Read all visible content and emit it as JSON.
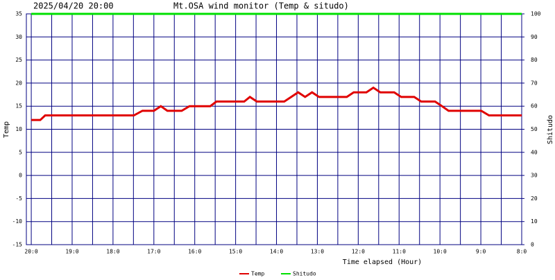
{
  "chart_data": {
    "type": "line",
    "timestamp": "2025/04/20 20:00",
    "title": "Mt.OSA wind monitor (Temp & situdo)",
    "x_label": "Time elapsed (Hour)",
    "y_label": "Temp",
    "y2_label": "Shitudo",
    "xlim": [
      20.12,
      8
    ],
    "xticks": [
      {
        "value": 20,
        "label": "20:0"
      },
      {
        "value": 19,
        "label": "19:0"
      },
      {
        "value": 18,
        "label": "18:0"
      },
      {
        "value": 17,
        "label": "17:0"
      },
      {
        "value": 16,
        "label": "16:0"
      },
      {
        "value": 15,
        "label": "15:0"
      },
      {
        "value": 14,
        "label": "14:0"
      },
      {
        "value": 13,
        "label": "13:0"
      },
      {
        "value": 12,
        "label": "12:0"
      },
      {
        "value": 11,
        "label": "11:0"
      },
      {
        "value": 10,
        "label": "10:0"
      },
      {
        "value": 9,
        "label": "9:0"
      },
      {
        "value": 8,
        "label": "8:0"
      }
    ],
    "ylim": [
      -15,
      35
    ],
    "yticks": [
      -15,
      -10,
      -5,
      0,
      5,
      10,
      15,
      20,
      25,
      30,
      35
    ],
    "y2lim": [
      0,
      100
    ],
    "y2ticks": [
      0,
      10,
      20,
      30,
      40,
      50,
      60,
      70,
      80,
      90,
      100
    ],
    "grid": true,
    "series": [
      {
        "name": "Temp",
        "color": "#e00000",
        "x": [
          20,
          19.78,
          19.66,
          17.49,
          17.28,
          17.0,
          16.83,
          16.67,
          16.32,
          16.13,
          15.62,
          15.47,
          14.79,
          14.65,
          14.48,
          13.81,
          13.64,
          13.47,
          13.3,
          13.13,
          12.96,
          12.28,
          12.11,
          11.8,
          11.63,
          11.46,
          11.12,
          10.95,
          10.63,
          10.46,
          10.12,
          9.95,
          9.79,
          8.99,
          8.8,
          8
        ],
        "values": [
          12,
          12,
          13,
          13,
          14,
          14,
          15,
          14,
          14,
          15,
          15,
          16,
          16,
          17,
          16,
          16,
          17,
          18,
          17,
          18,
          17,
          17,
          18,
          18,
          19,
          18,
          18,
          17,
          17,
          16,
          16,
          15,
          14,
          14,
          13,
          13
        ]
      },
      {
        "name": "Shitudo",
        "color": "#00e000",
        "axis": "y2",
        "x": [
          20,
          8
        ],
        "values": [
          100,
          100
        ]
      }
    ]
  }
}
